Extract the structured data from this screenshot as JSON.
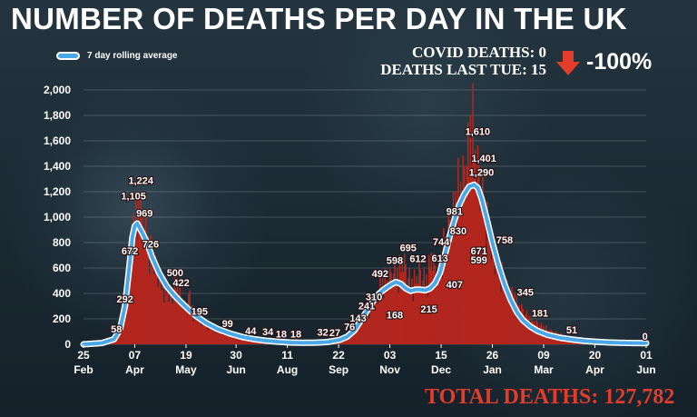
{
  "title": "NUMBER OF DEATHS PER DAY IN THE UK",
  "legend_label": "7 day rolling average",
  "stats": {
    "covid_deaths": "COVID DEATHS: 0",
    "deaths_last_tue": "DEATHS LAST TUE: 15",
    "change": "-100%",
    "arrow_icon": "down-arrow-icon"
  },
  "total_deaths": "TOTAL DEATHS: 127,782",
  "colors": {
    "bars": "#b3261e",
    "line": "#4aa8e8",
    "line_outline": "#ffffff",
    "arrow": "#e23c2a",
    "total": "#e23c2a"
  },
  "chart_data": {
    "type": "bar",
    "ylim": [
      0,
      2000
    ],
    "y_ticks": [
      0,
      200,
      400,
      600,
      800,
      1000,
      1200,
      1400,
      1600,
      1800,
      2000
    ],
    "y_tick_labels": [
      "0",
      "200",
      "400",
      "600",
      "800",
      "1,000",
      "1,200",
      "1,400",
      "1,600",
      "1,800",
      "2,000"
    ],
    "grid": true,
    "legend_position": "top-left",
    "x_ticks": [
      {
        "day": "25",
        "month": "Feb"
      },
      {
        "day": "07",
        "month": "Apr"
      },
      {
        "day": "19",
        "month": "May"
      },
      {
        "day": "30",
        "month": "Jun"
      },
      {
        "day": "11",
        "month": "Aug"
      },
      {
        "day": "22",
        "month": "Sep"
      },
      {
        "day": "03",
        "month": "Nov"
      },
      {
        "day": "15",
        "month": "Dec"
      },
      {
        "day": "26",
        "month": "Jan"
      },
      {
        "day": "09",
        "month": "Mar"
      },
      {
        "day": "20",
        "month": "Apr"
      },
      {
        "day": "01",
        "month": "Jun"
      }
    ],
    "x_tick_positions": [
      0,
      42,
      84,
      125,
      167,
      209,
      251,
      293,
      335,
      377,
      419,
      461
    ],
    "daily_deaths_key_points": [
      [
        0,
        0
      ],
      [
        6,
        2
      ],
      [
        14,
        10
      ],
      [
        20,
        35
      ],
      [
        25,
        60
      ],
      [
        30,
        120
      ],
      [
        34,
        292
      ],
      [
        38,
        672
      ],
      [
        41,
        980
      ],
      [
        42,
        1105
      ],
      [
        44,
        920
      ],
      [
        45,
        1224
      ],
      [
        47,
        1050
      ],
      [
        49,
        969
      ],
      [
        52,
        850
      ],
      [
        55,
        726
      ],
      [
        59,
        650
      ],
      [
        62,
        540
      ],
      [
        65,
        470
      ],
      [
        69,
        420
      ],
      [
        72,
        380
      ],
      [
        76,
        500
      ],
      [
        80,
        360
      ],
      [
        84,
        300
      ],
      [
        86,
        422
      ],
      [
        90,
        250
      ],
      [
        96,
        195
      ],
      [
        104,
        140
      ],
      [
        110,
        110
      ],
      [
        115,
        99
      ],
      [
        125,
        60
      ],
      [
        135,
        44
      ],
      [
        145,
        30
      ],
      [
        150,
        34
      ],
      [
        160,
        22
      ],
      [
        167,
        18
      ],
      [
        175,
        18
      ],
      [
        180,
        16
      ],
      [
        190,
        18
      ],
      [
        195,
        25
      ],
      [
        200,
        32
      ],
      [
        205,
        27
      ],
      [
        210,
        40
      ],
      [
        215,
        70
      ],
      [
        220,
        110
      ],
      [
        225,
        143
      ],
      [
        230,
        241
      ],
      [
        236,
        310
      ],
      [
        240,
        380
      ],
      [
        244,
        492
      ],
      [
        249,
        520
      ],
      [
        254,
        598
      ],
      [
        258,
        560
      ],
      [
        262,
        695
      ],
      [
        266,
        560
      ],
      [
        270,
        470
      ],
      [
        275,
        612
      ],
      [
        278,
        540
      ],
      [
        282,
        520
      ],
      [
        285,
        744
      ],
      [
        289,
        580
      ],
      [
        292,
        613
      ],
      [
        296,
        830
      ],
      [
        300,
        981
      ],
      [
        304,
        1100
      ],
      [
        308,
        1290
      ],
      [
        312,
        1401
      ],
      [
        316,
        1610
      ],
      [
        318,
        1820
      ],
      [
        322,
        1500
      ],
      [
        326,
        1300
      ],
      [
        330,
        1000
      ],
      [
        335,
        758
      ],
      [
        340,
        620
      ],
      [
        345,
        500
      ],
      [
        350,
        420
      ],
      [
        355,
        345
      ],
      [
        360,
        280
      ],
      [
        365,
        215
      ],
      [
        370,
        181
      ],
      [
        375,
        150
      ],
      [
        380,
        120
      ],
      [
        390,
        80
      ],
      [
        400,
        51
      ],
      [
        410,
        35
      ],
      [
        420,
        22
      ],
      [
        430,
        15
      ],
      [
        440,
        10
      ],
      [
        450,
        8
      ],
      [
        461,
        0
      ]
    ],
    "rolling_average_key_points": [
      [
        0,
        0
      ],
      [
        15,
        10
      ],
      [
        25,
        40
      ],
      [
        30,
        120
      ],
      [
        34,
        300
      ],
      [
        38,
        650
      ],
      [
        40,
        840
      ],
      [
        42,
        930
      ],
      [
        44,
        950
      ],
      [
        48,
        880
      ],
      [
        52,
        800
      ],
      [
        56,
        690
      ],
      [
        62,
        560
      ],
      [
        68,
        460
      ],
      [
        74,
        390
      ],
      [
        80,
        330
      ],
      [
        86,
        275
      ],
      [
        92,
        225
      ],
      [
        100,
        170
      ],
      [
        110,
        120
      ],
      [
        120,
        85
      ],
      [
        130,
        58
      ],
      [
        140,
        40
      ],
      [
        150,
        28
      ],
      [
        160,
        20
      ],
      [
        170,
        14
      ],
      [
        180,
        12
      ],
      [
        190,
        13
      ],
      [
        200,
        18
      ],
      [
        210,
        35
      ],
      [
        216,
        60
      ],
      [
        222,
        110
      ],
      [
        228,
        200
      ],
      [
        234,
        290
      ],
      [
        240,
        380
      ],
      [
        246,
        430
      ],
      [
        252,
        470
      ],
      [
        256,
        490
      ],
      [
        260,
        475
      ],
      [
        264,
        440
      ],
      [
        268,
        420
      ],
      [
        272,
        430
      ],
      [
        276,
        430
      ],
      [
        280,
        425
      ],
      [
        284,
        440
      ],
      [
        288,
        480
      ],
      [
        292,
        560
      ],
      [
        296,
        700
      ],
      [
        300,
        850
      ],
      [
        304,
        980
      ],
      [
        308,
        1100
      ],
      [
        312,
        1180
      ],
      [
        316,
        1240
      ],
      [
        320,
        1255
      ],
      [
        323,
        1230
      ],
      [
        326,
        1150
      ],
      [
        330,
        1000
      ],
      [
        335,
        800
      ],
      [
        340,
        620
      ],
      [
        345,
        470
      ],
      [
        350,
        350
      ],
      [
        355,
        255
      ],
      [
        360,
        190
      ],
      [
        366,
        140
      ],
      [
        372,
        105
      ],
      [
        380,
        75
      ],
      [
        390,
        52
      ],
      [
        400,
        38
      ],
      [
        410,
        27
      ],
      [
        420,
        20
      ],
      [
        430,
        15
      ],
      [
        440,
        12
      ],
      [
        450,
        10
      ],
      [
        461,
        9
      ]
    ],
    "annotations": [
      {
        "label": "58",
        "day": 27,
        "value": 58
      },
      {
        "label": "292",
        "day": 34,
        "value": 292
      },
      {
        "label": "672",
        "day": 38,
        "value": 672
      },
      {
        "label": "1,105",
        "day": 41,
        "value": 1105
      },
      {
        "label": "1,224",
        "day": 47,
        "value": 1224
      },
      {
        "label": "969",
        "day": 50,
        "value": 969
      },
      {
        "label": "726",
        "day": 55,
        "value": 726
      },
      {
        "label": "500",
        "day": 75,
        "value": 500
      },
      {
        "label": "422",
        "day": 80,
        "value": 422
      },
      {
        "label": "195",
        "day": 95,
        "value": 195
      },
      {
        "label": "99",
        "day": 118,
        "value": 99
      },
      {
        "label": "44",
        "day": 137,
        "value": 44
      },
      {
        "label": "34",
        "day": 151,
        "value": 34
      },
      {
        "label": "18",
        "day": 162,
        "value": 18
      },
      {
        "label": "18",
        "day": 174,
        "value": 18
      },
      {
        "label": "32",
        "day": 196,
        "value": 32
      },
      {
        "label": "27",
        "day": 206,
        "value": 27
      },
      {
        "label": "76",
        "day": 218,
        "value": 76
      },
      {
        "label": "143",
        "day": 225,
        "value": 143
      },
      {
        "label": "241",
        "day": 232,
        "value": 241
      },
      {
        "label": "310",
        "day": 238,
        "value": 310
      },
      {
        "label": "492",
        "day": 243,
        "value": 492
      },
      {
        "label": "168",
        "day": 255,
        "value": 168
      },
      {
        "label": "598",
        "day": 255,
        "value": 598
      },
      {
        "label": "695",
        "day": 266,
        "value": 695
      },
      {
        "label": "612",
        "day": 274,
        "value": 612
      },
      {
        "label": "215",
        "day": 283,
        "value": 215
      },
      {
        "label": "744",
        "day": 293,
        "value": 744
      },
      {
        "label": "613",
        "day": 292,
        "value": 613
      },
      {
        "label": "407",
        "day": 304,
        "value": 407
      },
      {
        "label": "830",
        "day": 307,
        "value": 830
      },
      {
        "label": "981",
        "day": 304,
        "value": 981
      },
      {
        "label": "671",
        "day": 324,
        "value": 671
      },
      {
        "label": "599",
        "day": 324,
        "value": 599
      },
      {
        "label": "1,290",
        "day": 326,
        "value": 1290
      },
      {
        "label": "1,401",
        "day": 328,
        "value": 1401
      },
      {
        "label": "1,610",
        "day": 323,
        "value": 1610
      },
      {
        "label": "758",
        "day": 345,
        "value": 758
      },
      {
        "label": "345",
        "day": 362,
        "value": 345
      },
      {
        "label": "181",
        "day": 374,
        "value": 181
      },
      {
        "label": "51",
        "day": 400,
        "value": 51
      },
      {
        "label": "0",
        "day": 460,
        "value": 0
      }
    ]
  }
}
